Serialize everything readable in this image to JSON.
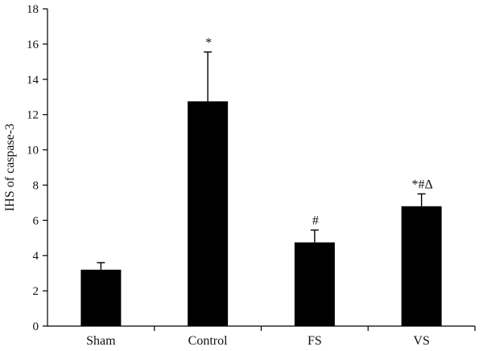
{
  "chart_data": {
    "type": "bar",
    "title": "",
    "xlabel": "",
    "ylabel": "IHS of caspase-3",
    "categories": [
      "Sham",
      "Control",
      "FS",
      "VS"
    ],
    "values": [
      3.2,
      12.75,
      4.75,
      6.8
    ],
    "error_upper": [
      0.4,
      2.8,
      0.7,
      0.7
    ],
    "annotations": [
      "",
      "*",
      "#",
      "*#Δ"
    ],
    "ylim": [
      0,
      18
    ],
    "yticks": [
      0,
      2,
      4,
      6,
      8,
      10,
      12,
      14,
      16,
      18
    ],
    "grid": false,
    "legend": "none",
    "bar_color": "#000000"
  }
}
